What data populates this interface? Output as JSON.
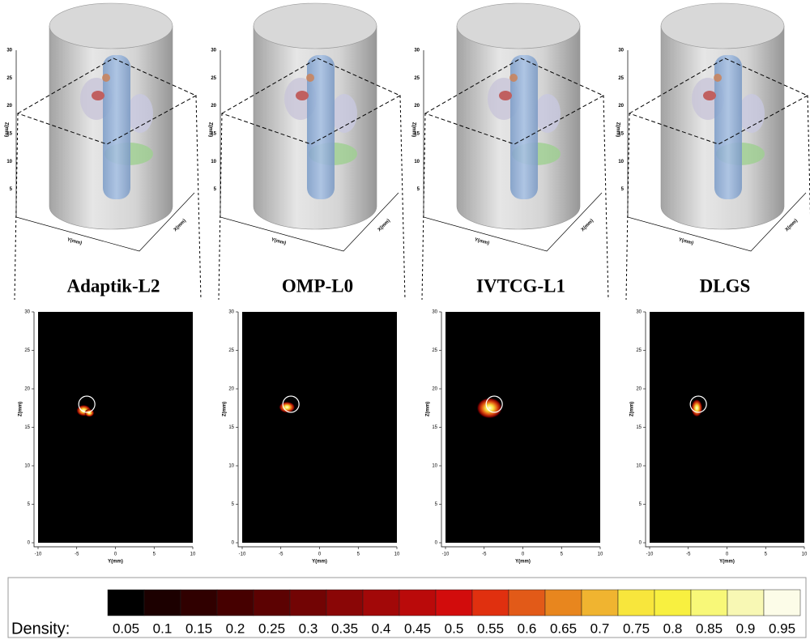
{
  "panels": [
    {
      "title": "Adaptik-L2"
    },
    {
      "title": "OMP-L0"
    },
    {
      "title": "IVTCG-L1"
    },
    {
      "title": "DLGS"
    }
  ],
  "axes3d": {
    "x_label": "X(mm)",
    "y_label": "Y(mm)",
    "z_label": "Z(mm)",
    "zticks": [
      5,
      10,
      15,
      20,
      25,
      30
    ]
  },
  "heatmap": {
    "x_label": "Y(mm)",
    "y_label": "Z(mm)",
    "xlim": [
      -10,
      10
    ],
    "ylim": [
      0,
      30
    ],
    "xticks": [
      -10,
      -5,
      0,
      5,
      10
    ],
    "yticks": [
      0,
      5,
      10,
      15,
      20,
      25,
      30
    ]
  },
  "colorbar": {
    "label": "Density:",
    "colors": [
      "#000000",
      "#1c0000",
      "#300000",
      "#460000",
      "#5c0202",
      "#720404",
      "#8a0606",
      "#a20808",
      "#ba0a0a",
      "#d20c0c",
      "#e0300f",
      "#e25a18",
      "#e8861e",
      "#f0b430",
      "#f8e63c",
      "#f8f040",
      "#f8f878",
      "#f8f8b4",
      "#fcfce8"
    ],
    "ticks": [
      0.05,
      0.1,
      0.15,
      0.2,
      0.25,
      0.3,
      0.35,
      0.4,
      0.45,
      0.5,
      0.55,
      0.6,
      0.65,
      0.7,
      0.75,
      0.8,
      0.85,
      0.9,
      0.95
    ]
  }
}
